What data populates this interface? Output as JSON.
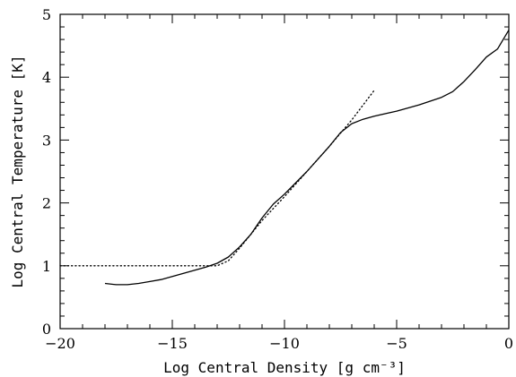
{
  "chart_data": {
    "type": "line",
    "xlabel": "Log Central Density [g cm⁻³]",
    "ylabel": "Log Central Temperature [K]",
    "xlim": [
      -20,
      0
    ],
    "ylim": [
      0,
      5
    ],
    "x_ticks": [
      -20,
      -15,
      -10,
      -5,
      0
    ],
    "y_ticks": [
      0,
      1,
      2,
      3,
      4,
      5
    ],
    "x_tick_labels": [
      "−20",
      "−15",
      "−10",
      "−5",
      "0"
    ],
    "y_tick_labels": [
      "0",
      "1",
      "2",
      "3",
      "4",
      "5"
    ],
    "grid": false,
    "series": [
      {
        "style": "solid",
        "color": "#000000",
        "x": [
          -18.0,
          -17.5,
          -17.0,
          -16.5,
          -16.0,
          -15.5,
          -15.0,
          -14.5,
          -14.0,
          -13.5,
          -13.0,
          -12.5,
          -12.0,
          -11.5,
          -11.0,
          -10.5,
          -10.0,
          -9.0,
          -8.0,
          -7.5,
          -7.0,
          -6.5,
          -6.0,
          -5.0,
          -4.0,
          -3.0,
          -2.5,
          -2.0,
          -1.5,
          -1.0,
          -0.5,
          0.0
        ],
        "y": [
          0.72,
          0.7,
          0.7,
          0.72,
          0.75,
          0.78,
          0.83,
          0.88,
          0.93,
          0.98,
          1.04,
          1.14,
          1.3,
          1.5,
          1.76,
          1.98,
          2.14,
          2.5,
          2.9,
          3.12,
          3.26,
          3.33,
          3.38,
          3.46,
          3.56,
          3.68,
          3.77,
          3.93,
          4.12,
          4.32,
          4.45,
          4.75
        ]
      },
      {
        "style": "dotted",
        "color": "#000000",
        "x": [
          -20.0,
          -17.0,
          -14.0,
          -13.0,
          -12.5,
          -12.0,
          -11.0,
          -10.0,
          -9.0,
          -8.0,
          -7.0,
          -6.0
        ],
        "y": [
          1.0,
          1.0,
          1.0,
          1.0,
          1.08,
          1.28,
          1.72,
          2.1,
          2.5,
          2.9,
          3.32,
          3.79
        ]
      }
    ]
  }
}
